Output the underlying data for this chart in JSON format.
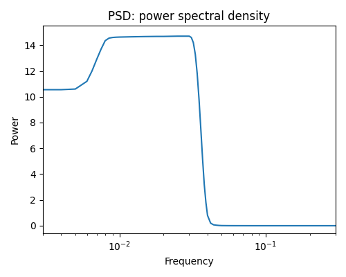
{
  "title": "PSD: power spectral density",
  "xlabel": "Frequency",
  "ylabel": "Power",
  "line_color": "#1f77b4",
  "line_width": 1.5,
  "figsize": [
    5.0,
    4.0
  ],
  "dpi": 100,
  "xlim": [
    0.003,
    0.3
  ],
  "ylim": [
    -0.6,
    15.5
  ],
  "x": [
    0.003,
    0.004,
    0.005,
    0.006,
    0.0065,
    0.007,
    0.0075,
    0.008,
    0.0085,
    0.009,
    0.0095,
    0.01,
    0.012,
    0.015,
    0.018,
    0.02,
    0.025,
    0.028,
    0.0295,
    0.03,
    0.031,
    0.032,
    0.033,
    0.034,
    0.035,
    0.036,
    0.037,
    0.038,
    0.039,
    0.04,
    0.042,
    0.044,
    0.046,
    0.048,
    0.05,
    0.055,
    0.06,
    0.07,
    0.08,
    0.09,
    0.1,
    0.15,
    0.2,
    0.25,
    0.3
  ],
  "y": [
    10.55,
    10.55,
    10.6,
    11.2,
    12.0,
    12.9,
    13.7,
    14.35,
    14.55,
    14.6,
    14.62,
    14.63,
    14.65,
    14.67,
    14.68,
    14.68,
    14.7,
    14.7,
    14.7,
    14.7,
    14.6,
    14.2,
    13.3,
    11.8,
    9.8,
    7.5,
    5.2,
    3.2,
    1.8,
    0.8,
    0.2,
    0.07,
    0.04,
    0.02,
    0.01,
    0.005,
    0.003,
    0.002,
    0.001,
    0.001,
    0.001,
    0.001,
    0.001,
    0.001,
    0.001
  ]
}
